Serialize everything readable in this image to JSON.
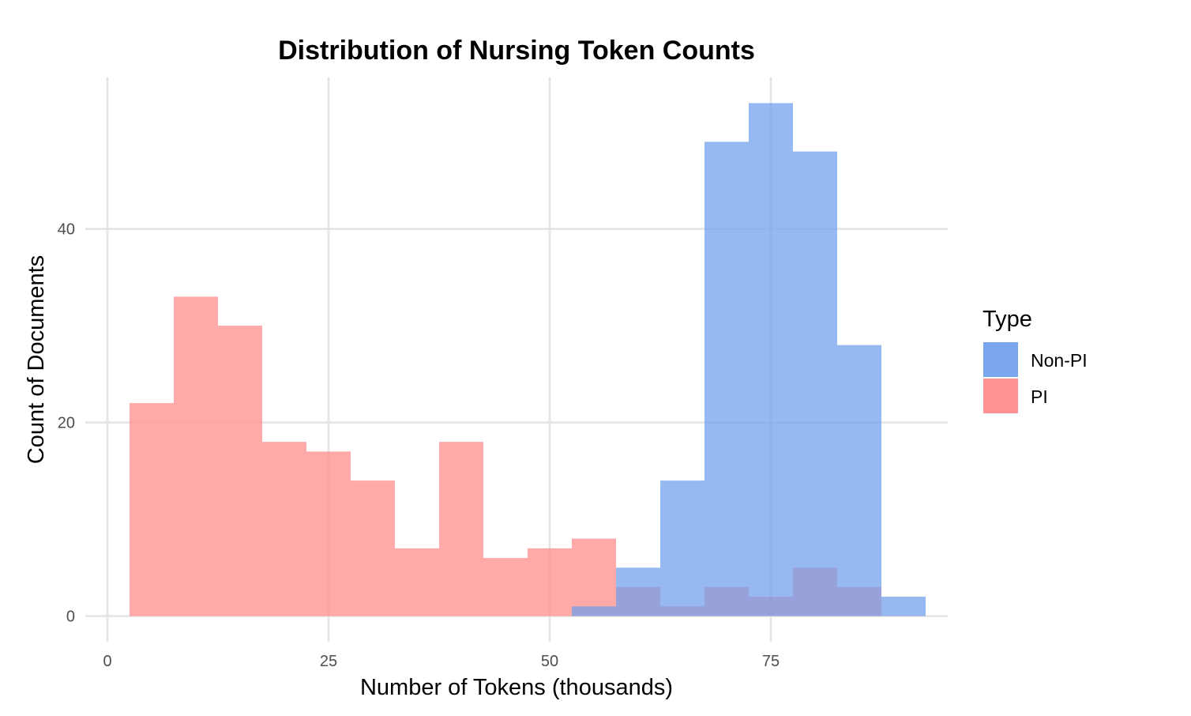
{
  "chart_data": {
    "type": "histogram",
    "title": "Distribution of Nursing Token Counts",
    "xlabel": "Number of Tokens (thousands)",
    "ylabel": "Count of Documents",
    "xlim": [
      -2.5,
      95
    ],
    "ylim": [
      -2.65,
      55.65
    ],
    "x_ticks": [
      0,
      25,
      50,
      75
    ],
    "y_ticks": [
      0,
      20,
      40
    ],
    "bin_width": 5,
    "grid": true,
    "legend": {
      "title": "Type",
      "position": "right"
    },
    "series": [
      {
        "name": "PI",
        "color": "#ff8c8c",
        "opacity": 0.75,
        "bins": [
          {
            "x0": 2.5,
            "x1": 7.5,
            "count": 22
          },
          {
            "x0": 7.5,
            "x1": 12.5,
            "count": 33
          },
          {
            "x0": 12.5,
            "x1": 17.5,
            "count": 30
          },
          {
            "x0": 17.5,
            "x1": 22.5,
            "count": 18
          },
          {
            "x0": 22.5,
            "x1": 27.5,
            "count": 17
          },
          {
            "x0": 27.5,
            "x1": 32.5,
            "count": 14
          },
          {
            "x0": 32.5,
            "x1": 37.5,
            "count": 7
          },
          {
            "x0": 37.5,
            "x1": 42.5,
            "count": 18
          },
          {
            "x0": 42.5,
            "x1": 47.5,
            "count": 6
          },
          {
            "x0": 47.5,
            "x1": 52.5,
            "count": 7
          },
          {
            "x0": 52.5,
            "x1": 57.5,
            "count": 8
          },
          {
            "x0": 57.5,
            "x1": 62.5,
            "count": 3
          },
          {
            "x0": 62.5,
            "x1": 67.5,
            "count": 1
          },
          {
            "x0": 67.5,
            "x1": 72.5,
            "count": 3
          },
          {
            "x0": 72.5,
            "x1": 77.5,
            "count": 2
          },
          {
            "x0": 77.5,
            "x1": 82.5,
            "count": 5
          },
          {
            "x0": 82.5,
            "x1": 87.5,
            "count": 3
          }
        ]
      },
      {
        "name": "Non-PI",
        "color": "#6f9eed",
        "opacity": 0.72,
        "bins": [
          {
            "x0": 52.5,
            "x1": 57.5,
            "count": 1
          },
          {
            "x0": 57.5,
            "x1": 62.5,
            "count": 5
          },
          {
            "x0": 62.5,
            "x1": 67.5,
            "count": 14
          },
          {
            "x0": 67.5,
            "x1": 72.5,
            "count": 49
          },
          {
            "x0": 72.5,
            "x1": 77.5,
            "count": 53
          },
          {
            "x0": 77.5,
            "x1": 82.5,
            "count": 48
          },
          {
            "x0": 82.5,
            "x1": 87.5,
            "count": 28
          },
          {
            "x0": 87.5,
            "x1": 92.5,
            "count": 2
          }
        ]
      }
    ]
  }
}
